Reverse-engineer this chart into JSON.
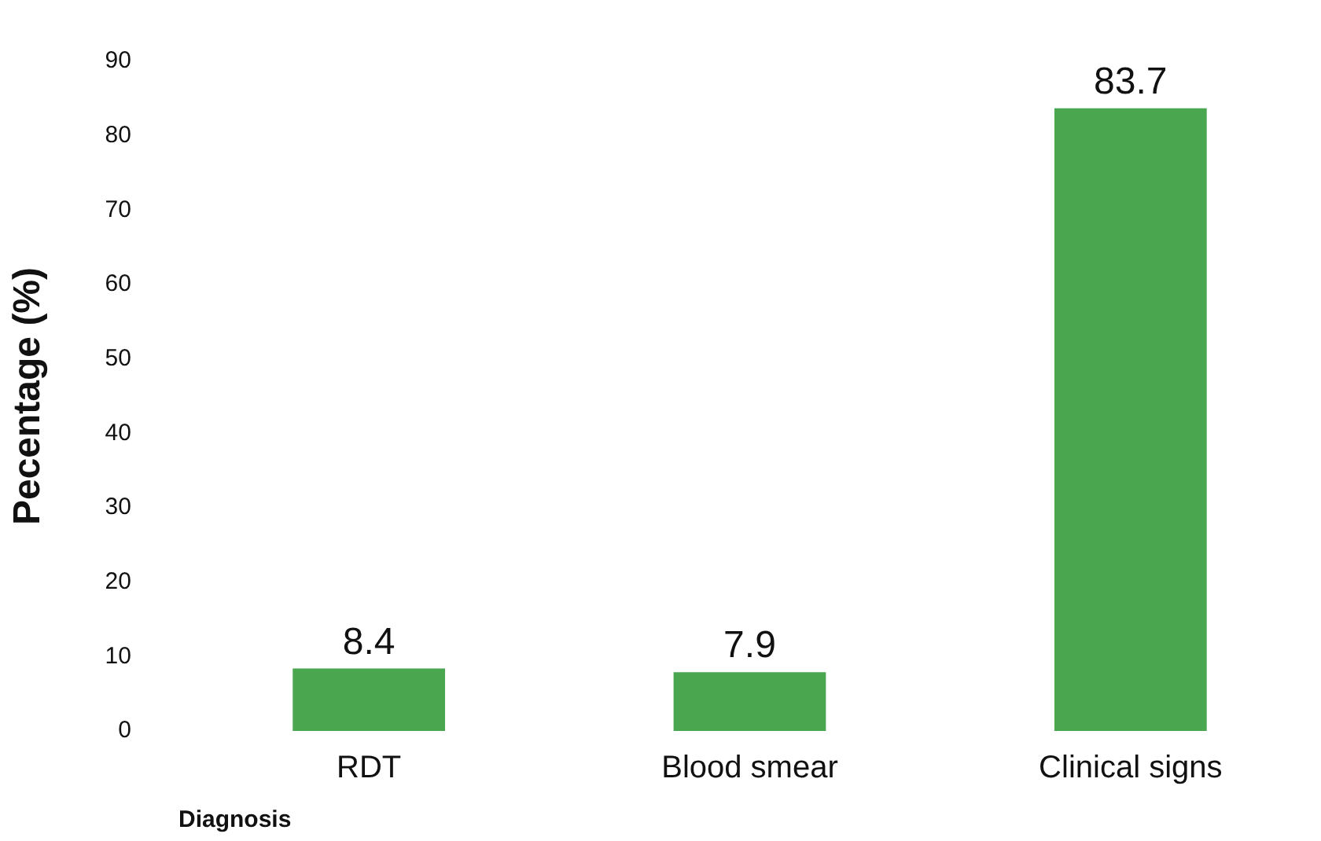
{
  "chart_data": {
    "type": "bar",
    "xlabel": "Diagnosis",
    "ylabel": "Pecentage (%)",
    "categories": [
      "RDT",
      "Blood smear",
      "Clinical signs"
    ],
    "values": [
      8.4,
      7.9,
      83.7
    ],
    "color": "#4ba650",
    "ylim": [
      0,
      90
    ],
    "yticks": [
      0,
      10,
      20,
      30,
      40,
      50,
      60,
      70,
      80,
      90
    ],
    "grid": false,
    "legend": false,
    "data_labels": true
  }
}
